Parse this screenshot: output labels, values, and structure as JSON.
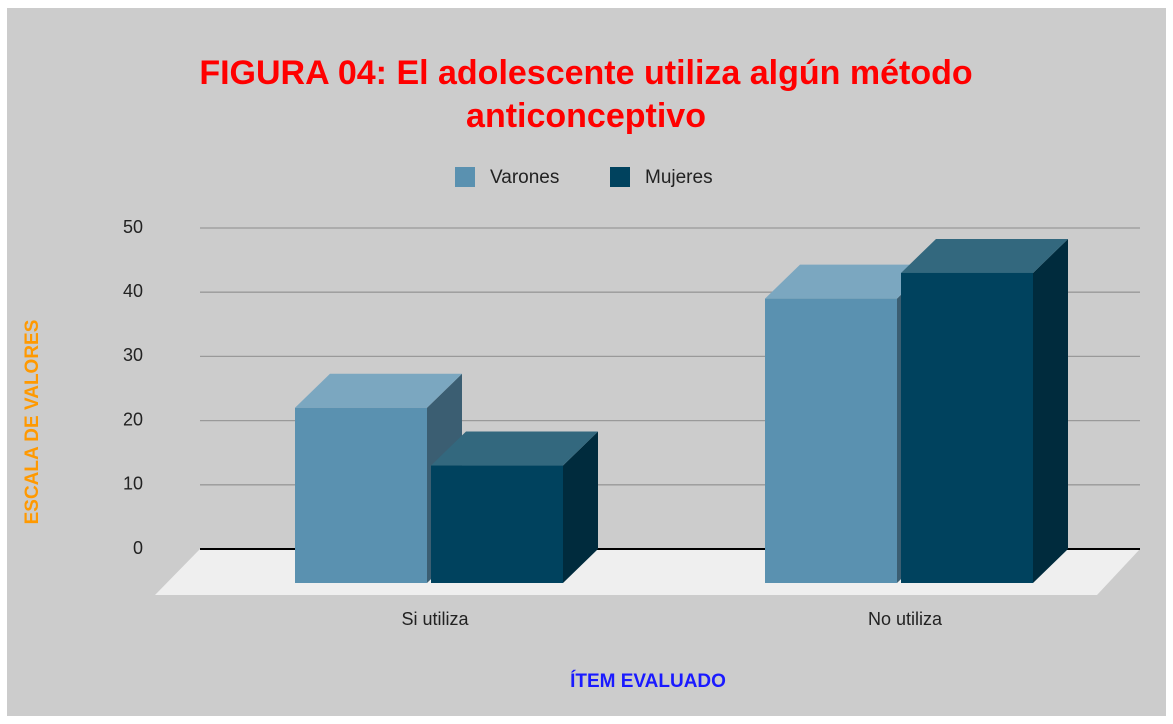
{
  "chart_data": {
    "type": "bar3d",
    "title": "FIGURA 04: El adolescente utiliza algún método anticonceptivo",
    "x_label": "ÍTEM EVALUADO",
    "y_label": "ESCALA DE VALORES",
    "categories": [
      "Si utiliza",
      "No utiliza"
    ],
    "series": [
      {
        "name": "Varones",
        "color": "#5a91b0",
        "values": [
          22,
          39
        ]
      },
      {
        "name": "Mujeres",
        "color": "#00425e",
        "values": [
          13,
          43
        ]
      }
    ],
    "ylim": [
      0,
      50
    ],
    "yticks": [
      0,
      10,
      20,
      30,
      40,
      50
    ],
    "grid": true,
    "legend": "top"
  }
}
